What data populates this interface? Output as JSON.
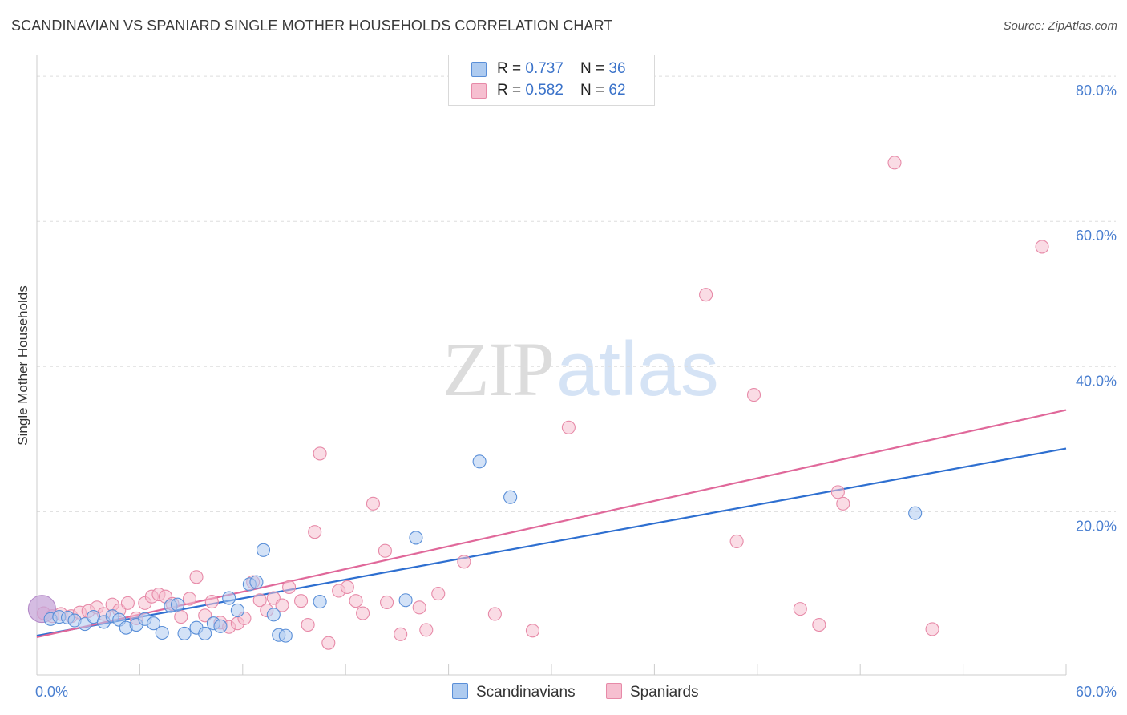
{
  "header": {
    "title": "SCANDINAVIAN VS SPANIARD SINGLE MOTHER HOUSEHOLDS CORRELATION CHART",
    "source": "Source: ZipAtlas.com"
  },
  "watermark": {
    "zip": "ZIP",
    "atlas": "atlas"
  },
  "legend": {
    "items": [
      {
        "r_label": "R = ",
        "r_value": "0.737",
        "n_label": "N = ",
        "n_value": "36"
      },
      {
        "r_label": "R = ",
        "r_value": "0.582",
        "n_label": "N = ",
        "n_value": "62"
      }
    ]
  },
  "bottom_legend": {
    "items": [
      "Scandinavians",
      "Spaniards"
    ]
  },
  "colors": {
    "scandinavian_fill": "#aecbf0",
    "scandinavian_stroke": "#5a8fd8",
    "scandinavian_line": "#2e6fd0",
    "spaniard_fill": "#f6bfd0",
    "spaniard_stroke": "#e78aa8",
    "spaniard_line": "#e0689a",
    "grid": "#dddddd",
    "axis": "#cccccc",
    "tick_text": "#4a7fd0"
  },
  "chart_data": {
    "type": "scatter",
    "title": "SCANDINAVIAN VS SPANIARD SINGLE MOTHER HOUSEHOLDS CORRELATION CHART",
    "xlabel": "",
    "ylabel": "Single Mother Households",
    "xlim": [
      0,
      60
    ],
    "ylim": [
      -2.5,
      83
    ],
    "x_tick_labels": [
      {
        "value": 0,
        "label": "0.0%"
      },
      {
        "value": 60,
        "label": "60.0%"
      }
    ],
    "y_ticks": [
      {
        "value": 20,
        "label": "20.0%"
      },
      {
        "value": 40,
        "label": "40.0%"
      },
      {
        "value": 60,
        "label": "60.0%"
      },
      {
        "value": 80,
        "label": "80.0%"
      }
    ],
    "x_minor_ticks": [
      6,
      12,
      18,
      24,
      30,
      36,
      42,
      48,
      54,
      60
    ],
    "series": [
      {
        "name": "Scandinavians",
        "r": 0.737,
        "n": 36,
        "trend": {
          "x": [
            0,
            60
          ],
          "y": [
            2.9,
            28.7
          ]
        },
        "points": [
          {
            "x": 0.3,
            "y": 6.6,
            "big": true
          },
          {
            "x": 0.8,
            "y": 5.2
          },
          {
            "x": 1.3,
            "y": 5.5
          },
          {
            "x": 1.8,
            "y": 5.4
          },
          {
            "x": 2.2,
            "y": 5.0
          },
          {
            "x": 2.8,
            "y": 4.5
          },
          {
            "x": 3.3,
            "y": 5.5
          },
          {
            "x": 3.9,
            "y": 4.8
          },
          {
            "x": 4.4,
            "y": 5.6
          },
          {
            "x": 4.8,
            "y": 5.1
          },
          {
            "x": 5.2,
            "y": 4.0
          },
          {
            "x": 5.8,
            "y": 4.4
          },
          {
            "x": 6.3,
            "y": 5.2
          },
          {
            "x": 6.8,
            "y": 4.6
          },
          {
            "x": 7.3,
            "y": 3.3
          },
          {
            "x": 7.8,
            "y": 7.0
          },
          {
            "x": 8.2,
            "y": 7.2
          },
          {
            "x": 8.6,
            "y": 3.2
          },
          {
            "x": 9.3,
            "y": 4.0
          },
          {
            "x": 9.8,
            "y": 3.2
          },
          {
            "x": 10.3,
            "y": 4.6
          },
          {
            "x": 10.7,
            "y": 4.2
          },
          {
            "x": 11.2,
            "y": 8.1
          },
          {
            "x": 11.7,
            "y": 6.4
          },
          {
            "x": 12.4,
            "y": 10.0
          },
          {
            "x": 12.8,
            "y": 10.3
          },
          {
            "x": 13.2,
            "y": 14.7
          },
          {
            "x": 13.8,
            "y": 5.8
          },
          {
            "x": 14.1,
            "y": 3.0
          },
          {
            "x": 14.5,
            "y": 2.9
          },
          {
            "x": 16.5,
            "y": 7.6
          },
          {
            "x": 21.5,
            "y": 7.8
          },
          {
            "x": 22.1,
            "y": 16.4
          },
          {
            "x": 25.8,
            "y": 26.9
          },
          {
            "x": 27.6,
            "y": 22.0
          },
          {
            "x": 51.2,
            "y": 19.8
          }
        ]
      },
      {
        "name": "Spaniards",
        "r": 0.582,
        "n": 62,
        "trend": {
          "x": [
            0,
            60
          ],
          "y": [
            2.7,
            34.0
          ]
        },
        "points": [
          {
            "x": 0.4,
            "y": 6.0
          },
          {
            "x": 0.9,
            "y": 5.6
          },
          {
            "x": 1.4,
            "y": 5.9
          },
          {
            "x": 2.0,
            "y": 5.6
          },
          {
            "x": 2.5,
            "y": 6.1
          },
          {
            "x": 3.0,
            "y": 6.3
          },
          {
            "x": 3.5,
            "y": 6.8
          },
          {
            "x": 3.9,
            "y": 5.9
          },
          {
            "x": 4.4,
            "y": 7.2
          },
          {
            "x": 4.8,
            "y": 6.4
          },
          {
            "x": 5.3,
            "y": 7.4
          },
          {
            "x": 5.8,
            "y": 5.3
          },
          {
            "x": 6.3,
            "y": 7.4
          },
          {
            "x": 6.7,
            "y": 8.3
          },
          {
            "x": 7.1,
            "y": 8.6
          },
          {
            "x": 7.5,
            "y": 8.3
          },
          {
            "x": 7.9,
            "y": 7.3
          },
          {
            "x": 8.4,
            "y": 5.5
          },
          {
            "x": 8.9,
            "y": 8.0
          },
          {
            "x": 9.3,
            "y": 11.0
          },
          {
            "x": 9.8,
            "y": 5.7
          },
          {
            "x": 10.2,
            "y": 7.6
          },
          {
            "x": 10.7,
            "y": 4.7
          },
          {
            "x": 11.2,
            "y": 4.1
          },
          {
            "x": 11.7,
            "y": 4.6
          },
          {
            "x": 12.1,
            "y": 5.3
          },
          {
            "x": 12.6,
            "y": 10.3
          },
          {
            "x": 13.0,
            "y": 7.8
          },
          {
            "x": 13.4,
            "y": 6.4
          },
          {
            "x": 13.8,
            "y": 8.1
          },
          {
            "x": 14.3,
            "y": 7.1
          },
          {
            "x": 14.7,
            "y": 9.6
          },
          {
            "x": 15.4,
            "y": 7.7
          },
          {
            "x": 15.8,
            "y": 4.4
          },
          {
            "x": 16.2,
            "y": 17.2
          },
          {
            "x": 16.5,
            "y": 28.0
          },
          {
            "x": 17.0,
            "y": 1.9
          },
          {
            "x": 17.6,
            "y": 9.1
          },
          {
            "x": 18.1,
            "y": 9.6
          },
          {
            "x": 18.6,
            "y": 7.7
          },
          {
            "x": 19.0,
            "y": 6.0
          },
          {
            "x": 19.6,
            "y": 21.1
          },
          {
            "x": 20.3,
            "y": 14.6
          },
          {
            "x": 20.4,
            "y": 7.5
          },
          {
            "x": 21.2,
            "y": 3.1
          },
          {
            "x": 22.3,
            "y": 6.8
          },
          {
            "x": 22.7,
            "y": 3.7
          },
          {
            "x": 23.4,
            "y": 8.7
          },
          {
            "x": 24.9,
            "y": 13.1
          },
          {
            "x": 26.7,
            "y": 5.9
          },
          {
            "x": 28.9,
            "y": 3.6
          },
          {
            "x": 31.0,
            "y": 31.6
          },
          {
            "x": 39.0,
            "y": 49.9
          },
          {
            "x": 40.8,
            "y": 15.9
          },
          {
            "x": 41.8,
            "y": 36.1
          },
          {
            "x": 44.5,
            "y": 6.6
          },
          {
            "x": 45.6,
            "y": 4.4
          },
          {
            "x": 46.7,
            "y": 22.7
          },
          {
            "x": 47.0,
            "y": 21.1
          },
          {
            "x": 50.0,
            "y": 68.1
          },
          {
            "x": 52.2,
            "y": 3.8
          },
          {
            "x": 58.6,
            "y": 56.5
          }
        ]
      }
    ]
  }
}
